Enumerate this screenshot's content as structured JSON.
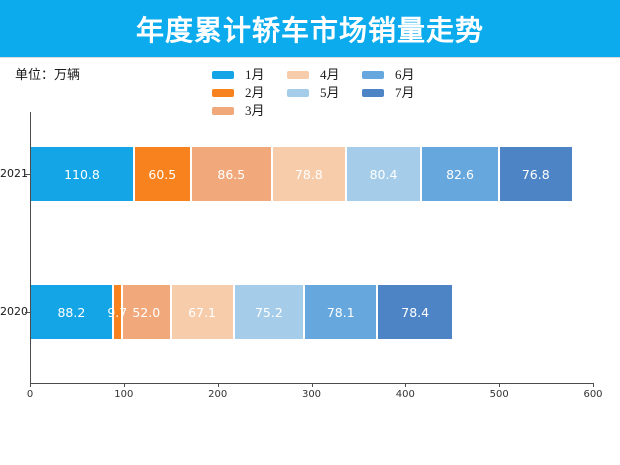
{
  "header": {
    "title": "年度累计轿车市场销量走势",
    "bg_color": "#0babee",
    "text_color": "#ffffff"
  },
  "unit_label": "单位：万辆",
  "chart_data": {
    "type": "bar",
    "orientation": "horizontal",
    "stacked": true,
    "title": "年度累计轿车市场销量走势",
    "unit": "万辆",
    "categories": [
      "2021",
      "2020"
    ],
    "series": [
      {
        "name": "1月",
        "color": "#14a5e6",
        "values": [
          110.8,
          88.2
        ],
        "labels": [
          "110.8",
          "88.2"
        ]
      },
      {
        "name": "2月",
        "color": "#f8821e",
        "values": [
          60.5,
          9.7
        ],
        "labels": [
          "60.5",
          "9.7"
        ]
      },
      {
        "name": "3月",
        "color": "#f1a97c",
        "values": [
          86.5,
          52.0
        ],
        "labels": [
          "86.5",
          "52.0"
        ]
      },
      {
        "name": "4月",
        "color": "#f7ccaa",
        "values": [
          78.8,
          67.1
        ],
        "labels": [
          "78.8",
          "67.1"
        ]
      },
      {
        "name": "5月",
        "color": "#a5cde9",
        "values": [
          80.4,
          75.2
        ],
        "labels": [
          "80.4",
          "75.2"
        ]
      },
      {
        "name": "6月",
        "color": "#66a7dd",
        "values": [
          82.6,
          78.1
        ],
        "labels": [
          "82.6",
          "78.1"
        ]
      },
      {
        "name": "7月",
        "color": "#4d84c6",
        "values": [
          76.8,
          78.4
        ],
        "labels": [
          "76.8",
          "78.4"
        ]
      }
    ],
    "totals": [
      576.4,
      448.7
    ],
    "xlim": [
      0,
      600
    ],
    "x_ticks": [
      0,
      100,
      200,
      300,
      400,
      500,
      600
    ],
    "grid": false,
    "legend_position": "top",
    "legend_columns": [
      [
        0,
        1,
        2
      ],
      [
        3,
        4
      ],
      [
        5,
        6
      ]
    ],
    "value_labels": true,
    "value_label_color": "#ffffff",
    "axis_color": "#4d4d4d"
  }
}
